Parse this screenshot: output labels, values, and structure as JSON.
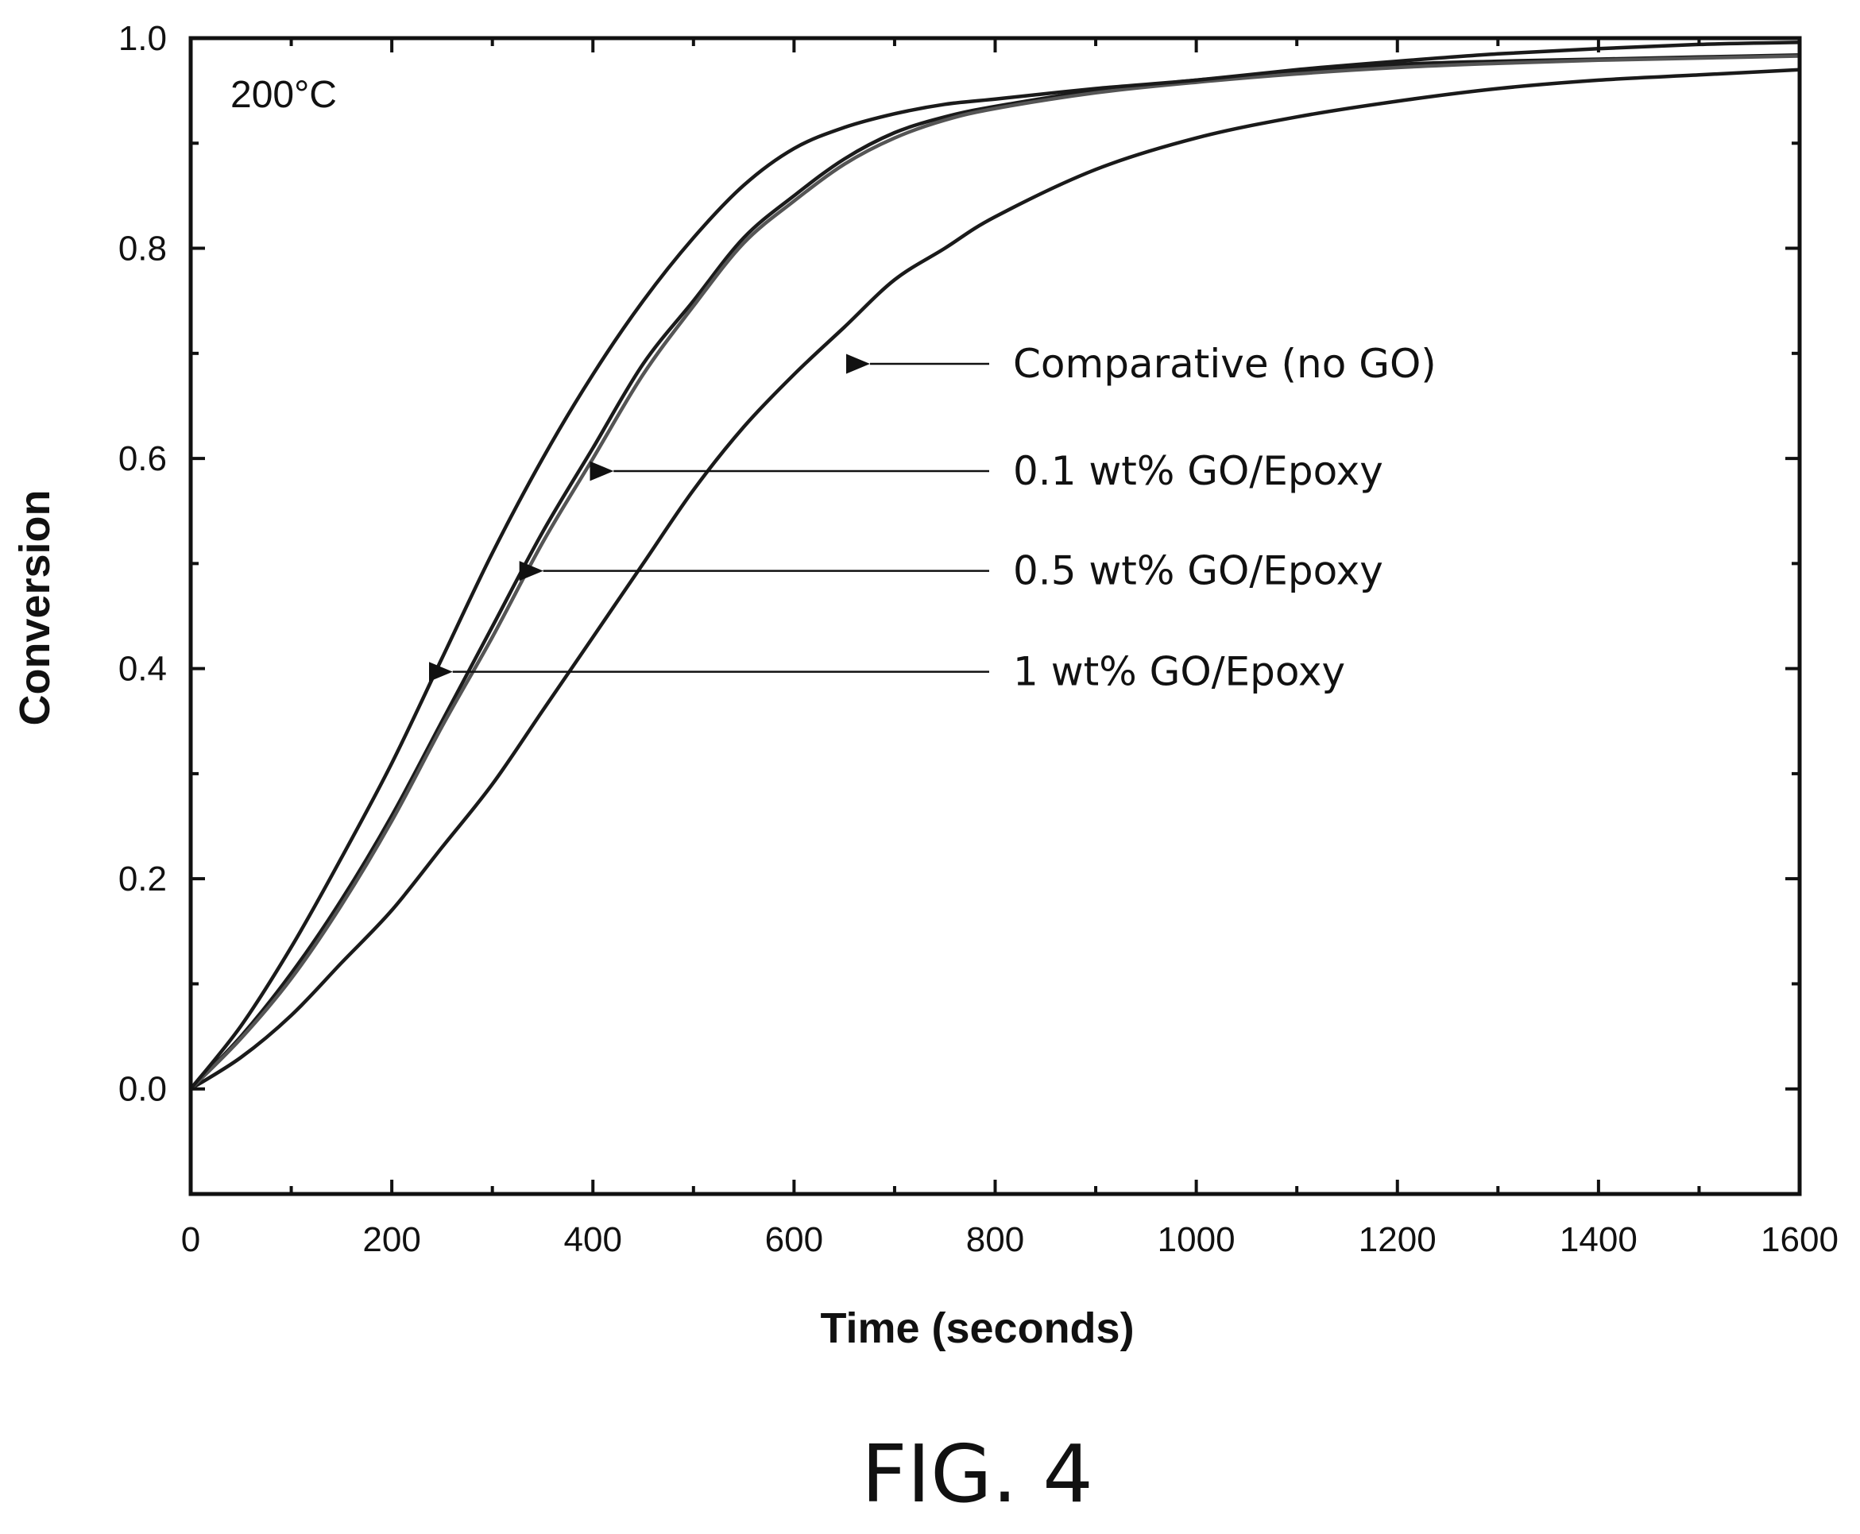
{
  "chart_data": {
    "type": "line",
    "xlabel": "Time (seconds)",
    "ylabel": "Conversion",
    "xlim": [
      0,
      1600
    ],
    "ylim": [
      -0.1,
      1.0
    ],
    "x_ticks": [
      0,
      200,
      400,
      600,
      800,
      1000,
      1200,
      1400,
      1600
    ],
    "y_ticks": [
      0.0,
      0.2,
      0.4,
      0.6,
      0.8,
      1.0
    ],
    "x_tick_labels": [
      "0",
      "200",
      "400",
      "600",
      "800",
      "1000",
      "1200",
      "1400",
      "1600"
    ],
    "y_tick_labels": [
      "0.0",
      "0.2",
      "0.4",
      "0.6",
      "0.8",
      "1.0"
    ],
    "grid": false,
    "inset_text": "200°C",
    "series": [
      {
        "name": "Comparative (no GO)",
        "x": [
          0,
          50,
          100,
          150,
          200,
          250,
          300,
          350,
          400,
          450,
          500,
          550,
          600,
          650,
          700,
          750,
          800,
          900,
          1000,
          1100,
          1200,
          1300,
          1400,
          1500,
          1600
        ],
        "y": [
          0.0,
          0.03,
          0.07,
          0.12,
          0.17,
          0.23,
          0.29,
          0.36,
          0.43,
          0.5,
          0.57,
          0.63,
          0.68,
          0.725,
          0.77,
          0.8,
          0.83,
          0.875,
          0.905,
          0.925,
          0.94,
          0.952,
          0.96,
          0.965,
          0.97
        ]
      },
      {
        "name": "0.1 wt% GO/Epoxy",
        "x": [
          0,
          50,
          100,
          150,
          200,
          250,
          300,
          350,
          400,
          450,
          500,
          550,
          600,
          650,
          700,
          750,
          800,
          900,
          1000,
          1100,
          1200,
          1300,
          1400,
          1500,
          1600
        ],
        "y": [
          0.0,
          0.05,
          0.11,
          0.18,
          0.26,
          0.35,
          0.44,
          0.53,
          0.61,
          0.69,
          0.75,
          0.81,
          0.85,
          0.885,
          0.91,
          0.925,
          0.935,
          0.95,
          0.96,
          0.968,
          0.975,
          0.978,
          0.98,
          0.982,
          0.984
        ]
      },
      {
        "name": "0.5 wt% GO/Epoxy",
        "x": [
          0,
          50,
          100,
          150,
          200,
          250,
          300,
          350,
          400,
          450,
          500,
          550,
          600,
          650,
          700,
          750,
          800,
          900,
          1000,
          1100,
          1200,
          1300,
          1400,
          1500,
          1600
        ],
        "y": [
          0.0,
          0.048,
          0.105,
          0.175,
          0.255,
          0.345,
          0.43,
          0.52,
          0.6,
          0.68,
          0.745,
          0.805,
          0.845,
          0.88,
          0.905,
          0.922,
          0.933,
          0.948,
          0.958,
          0.966,
          0.972,
          0.976,
          0.979,
          0.981,
          0.983
        ]
      },
      {
        "name": "1 wt% GO/Epoxy",
        "x": [
          0,
          50,
          100,
          150,
          200,
          250,
          300,
          350,
          400,
          450,
          500,
          550,
          600,
          650,
          700,
          750,
          800,
          900,
          1000,
          1100,
          1200,
          1300,
          1400,
          1500,
          1600
        ],
        "y": [
          0.0,
          0.06,
          0.135,
          0.22,
          0.31,
          0.41,
          0.51,
          0.6,
          0.68,
          0.75,
          0.81,
          0.86,
          0.895,
          0.915,
          0.928,
          0.937,
          0.942,
          0.952,
          0.96,
          0.97,
          0.978,
          0.985,
          0.99,
          0.994,
          0.996
        ]
      }
    ],
    "annotations": [
      {
        "text": "Comparative (no GO)",
        "series": "Comparative (no GO)",
        "arrow_to": [
          655,
          0.69
        ]
      },
      {
        "text": "0.1 wt% GO/Epoxy",
        "series": "0.1 wt% GO/Epoxy",
        "arrow_to": [
          400,
          0.585
        ]
      },
      {
        "text": "0.5 wt% GO/Epoxy",
        "series": "0.5 wt% GO/Epoxy",
        "arrow_to": [
          330,
          0.49
        ]
      },
      {
        "text": "1 wt% GO/Epoxy",
        "series": "1 wt% GO/Epoxy",
        "arrow_to": [
          240,
          0.395
        ]
      }
    ]
  },
  "figure_label": "FIG. 4"
}
